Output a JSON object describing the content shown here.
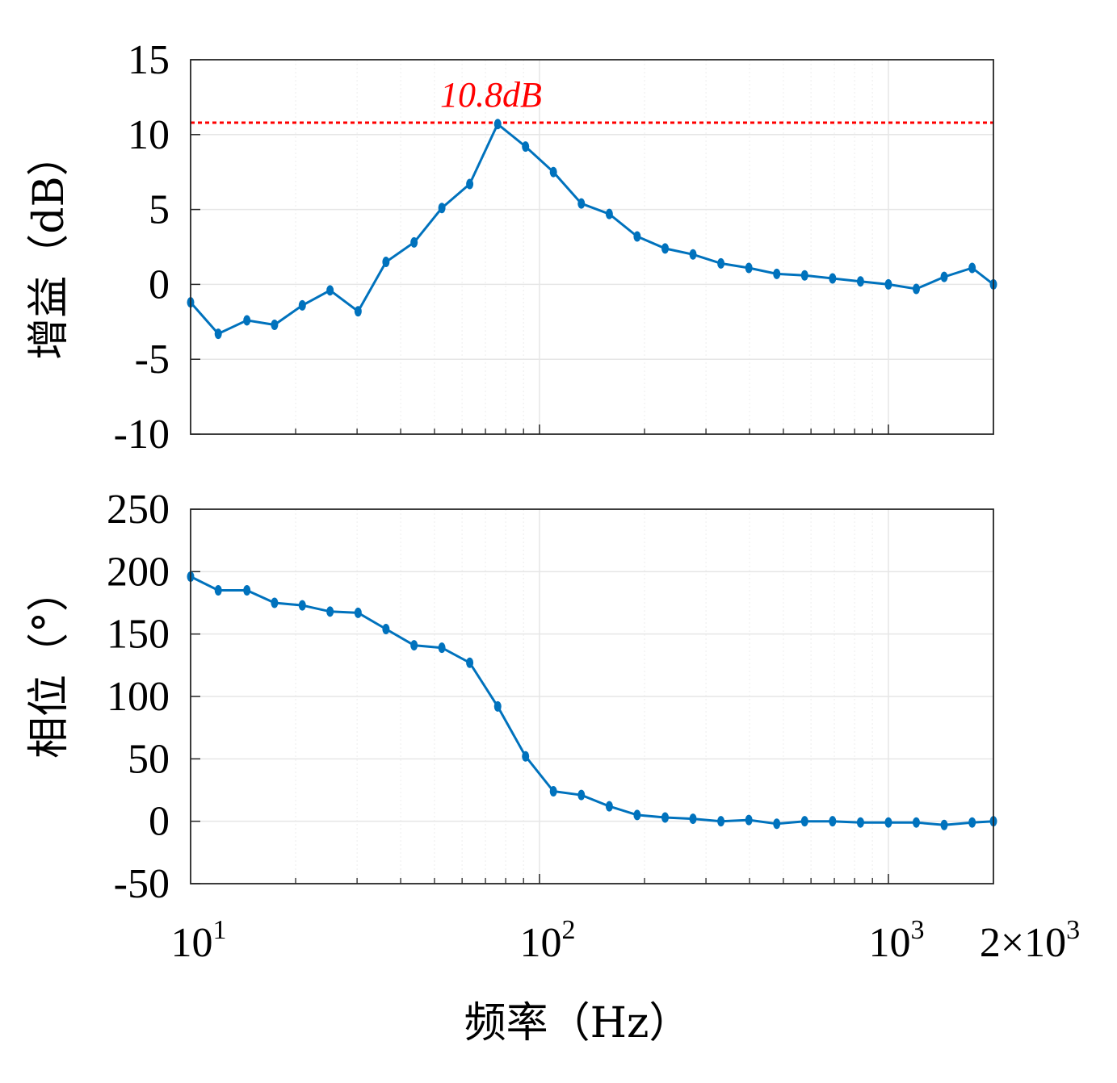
{
  "colors": {
    "series": "#0072BD",
    "reference": "#FF0000",
    "grid": "#e6e6e6",
    "axis": "#262626"
  },
  "chart_data": [
    {
      "type": "line",
      "name": "gain",
      "xscale": "log",
      "xlim": [
        10,
        2000
      ],
      "ylim": [
        -10,
        15
      ],
      "ylabel": "增益（dB）",
      "yticks": [
        "15",
        "10",
        "5",
        "0",
        "-5",
        "-10"
      ],
      "ytick_values": [
        15,
        10,
        5,
        0,
        -5,
        -10
      ],
      "reference_line": {
        "y": 10.8,
        "label": "10.8dB"
      },
      "series": [
        {
          "name": "gain",
          "x": [
            10,
            12,
            14.5,
            17.4,
            20.9,
            25.1,
            30.2,
            36.3,
            43.7,
            52.5,
            63.1,
            75.9,
            91.2,
            109.6,
            131.8,
            158.5,
            190.5,
            229.1,
            275.4,
            331.1,
            398.1,
            478.6,
            575.4,
            691.8,
            831.8,
            1000,
            1202,
            1445,
            1738,
            2000
          ],
          "values": [
            -1.2,
            -3.3,
            -2.4,
            -2.7,
            -1.4,
            -0.4,
            -1.8,
            1.5,
            2.8,
            5.1,
            6.7,
            10.7,
            9.2,
            7.5,
            5.4,
            4.7,
            3.2,
            2.4,
            2.0,
            1.4,
            1.1,
            0.7,
            0.6,
            0.4,
            0.2,
            0.0,
            -0.3,
            0.5,
            1.1,
            0.0
          ]
        }
      ]
    },
    {
      "type": "line",
      "name": "phase",
      "xscale": "log",
      "xlim": [
        10,
        2000
      ],
      "ylim": [
        -50,
        250
      ],
      "xlabel": "频率（Hz）",
      "ylabel": "相位（°）",
      "yticks": [
        "250",
        "200",
        "150",
        "100",
        "50",
        "0",
        "-50"
      ],
      "ytick_values": [
        250,
        200,
        150,
        100,
        50,
        0,
        -50
      ],
      "xticks": [
        {
          "value": 10,
          "base": "10",
          "exp": "1"
        },
        {
          "value": 100,
          "base": "10",
          "exp": "2"
        },
        {
          "value": 1000,
          "base": "10",
          "exp": "3"
        },
        {
          "value": 2000,
          "base": "2×10",
          "exp": "3"
        }
      ],
      "series": [
        {
          "name": "phase",
          "x": [
            10,
            12,
            14.5,
            17.4,
            20.9,
            25.1,
            30.2,
            36.3,
            43.7,
            52.5,
            63.1,
            75.9,
            91.2,
            109.6,
            131.8,
            158.5,
            190.5,
            229.1,
            275.4,
            331.1,
            398.1,
            478.6,
            575.4,
            691.8,
            831.8,
            1000,
            1202,
            1445,
            1738,
            2000
          ],
          "values": [
            196,
            185,
            185,
            175,
            173,
            168,
            167,
            154,
            141,
            139,
            127,
            92,
            52,
            24,
            21,
            12,
            5,
            3,
            2,
            0,
            1,
            -2,
            0,
            0,
            -1,
            -1,
            -1,
            -3,
            -1,
            0
          ]
        }
      ]
    }
  ]
}
